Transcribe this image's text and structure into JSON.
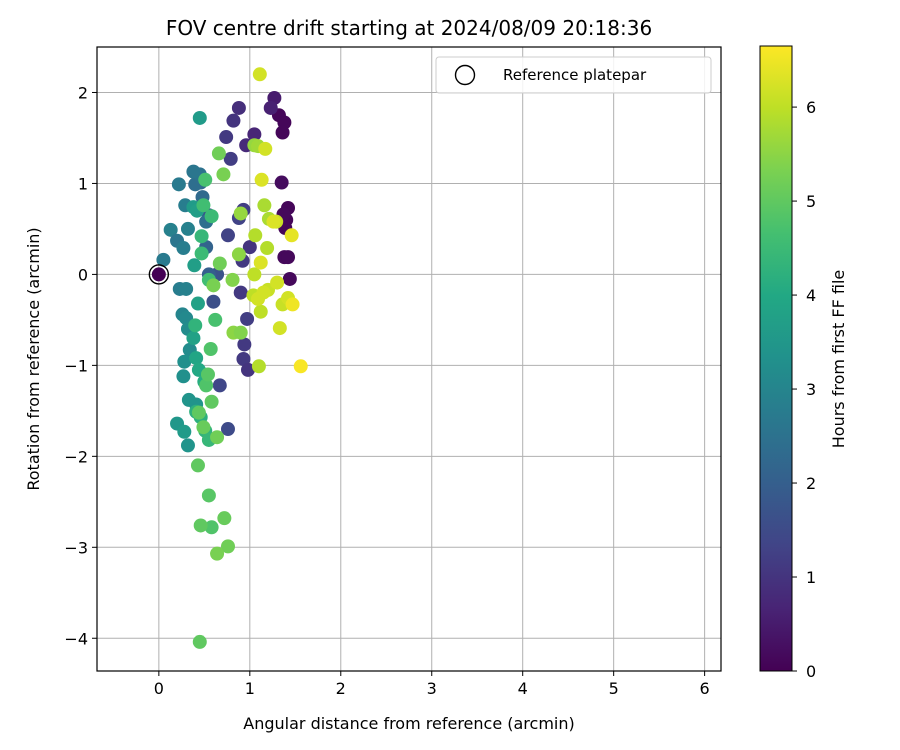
{
  "chart_data": {
    "type": "scatter",
    "title": "FOV centre drift starting at 2024/08/09 20:18:36",
    "xlabel": "Angular distance from reference (arcmin)",
    "ylabel": "Rotation from reference (arcmin)",
    "xlim": [
      -0.68,
      6.18
    ],
    "ylim": [
      -4.36,
      2.5
    ],
    "xticks": [
      0,
      1,
      2,
      3,
      4,
      5,
      6
    ],
    "yticks": [
      -4,
      -3,
      -2,
      -1,
      0,
      1,
      2
    ],
    "xtick_labels": [
      "0",
      "1",
      "2",
      "3",
      "4",
      "5",
      "6"
    ],
    "ytick_labels": [
      "−4",
      "−3",
      "−2",
      "−1",
      "0",
      "1",
      "2"
    ],
    "grid": true,
    "legend": {
      "placement": "top-right",
      "entries": [
        "Reference platepar"
      ]
    },
    "reference_point": {
      "name": "Reference platepar",
      "x": 0,
      "y": 0
    },
    "colorbar": {
      "label": "Hours from first FF file",
      "colormap": "viridis",
      "range": [
        0,
        6.65
      ],
      "ticks": [
        0,
        1,
        2,
        3,
        4,
        5,
        6
      ],
      "tick_labels": [
        "0",
        "1",
        "2",
        "3",
        "4",
        "5",
        "6"
      ]
    },
    "points": [
      [
        0.0,
        0.0,
        0.0
      ],
      [
        1.32,
        1.75,
        0.1
      ],
      [
        1.38,
        1.67,
        0.1
      ],
      [
        1.36,
        1.56,
        0.1
      ],
      [
        1.42,
        0.73,
        0.1
      ],
      [
        1.4,
        0.6,
        0.1
      ],
      [
        1.39,
        0.51,
        0.1
      ],
      [
        1.37,
        0.66,
        0.15
      ],
      [
        1.38,
        0.19,
        0.15
      ],
      [
        1.42,
        0.19,
        0.15
      ],
      [
        1.44,
        -0.05,
        0.15
      ],
      [
        1.35,
        1.01,
        0.2
      ],
      [
        1.27,
        1.94,
        0.5
      ],
      [
        1.23,
        1.83,
        0.6
      ],
      [
        1.05,
        1.54,
        0.7
      ],
      [
        0.96,
        1.42,
        0.8
      ],
      [
        0.88,
        1.83,
        0.9
      ],
      [
        0.82,
        1.69,
        1.0
      ],
      [
        0.74,
        1.51,
        1.1
      ],
      [
        0.79,
        1.27,
        1.2
      ],
      [
        0.93,
        0.71,
        1.2
      ],
      [
        0.88,
        0.62,
        1.3
      ],
      [
        0.76,
        0.43,
        1.3
      ],
      [
        0.92,
        0.15,
        1.1
      ],
      [
        1.0,
        0.3,
        1.0
      ],
      [
        0.9,
        -0.2,
        1.1
      ],
      [
        0.97,
        -0.49,
        1.2
      ],
      [
        0.94,
        -0.77,
        1.1
      ],
      [
        0.93,
        -0.93,
        1.1
      ],
      [
        0.98,
        -1.05,
        1.0
      ],
      [
        0.67,
        -1.22,
        1.4
      ],
      [
        0.76,
        -1.7,
        1.5
      ],
      [
        0.6,
        -0.3,
        1.6
      ],
      [
        0.64,
        0.0,
        1.7
      ],
      [
        0.55,
        0.65,
        1.7
      ],
      [
        0.55,
        0.0,
        2.0
      ],
      [
        0.52,
        0.3,
        2.1
      ],
      [
        0.52,
        0.58,
        2.4
      ],
      [
        0.48,
        0.85,
        2.3
      ],
      [
        0.46,
        1.01,
        2.2
      ],
      [
        0.4,
        0.99,
        2.4
      ],
      [
        0.45,
        1.1,
        2.5
      ],
      [
        0.38,
        1.13,
        2.6
      ],
      [
        0.22,
        0.99,
        2.7
      ],
      [
        0.29,
        0.76,
        2.8
      ],
      [
        0.32,
        0.5,
        2.9
      ],
      [
        0.13,
        0.49,
        2.9
      ],
      [
        0.2,
        0.37,
        2.6
      ],
      [
        0.27,
        0.29,
        2.8
      ],
      [
        0.05,
        0.16,
        2.7
      ],
      [
        0.23,
        -0.16,
        2.8
      ],
      [
        0.3,
        -0.16,
        2.9
      ],
      [
        0.26,
        -0.44,
        3.0
      ],
      [
        0.3,
        -0.48,
        3.1
      ],
      [
        0.32,
        -0.6,
        3.2
      ],
      [
        0.34,
        -0.83,
        3.2
      ],
      [
        0.28,
        -0.96,
        3.3
      ],
      [
        0.27,
        -1.12,
        3.3
      ],
      [
        0.33,
        -1.38,
        3.4
      ],
      [
        0.41,
        -1.43,
        3.4
      ],
      [
        0.2,
        -1.64,
        3.5
      ],
      [
        0.28,
        -1.73,
        3.6
      ],
      [
        0.32,
        -1.88,
        3.4
      ],
      [
        0.38,
        0.74,
        3.6
      ],
      [
        0.42,
        0.7,
        3.7
      ],
      [
        0.45,
        1.72,
        3.6
      ],
      [
        0.39,
        0.1,
        3.7
      ],
      [
        0.43,
        -0.32,
        3.8
      ],
      [
        0.38,
        -0.7,
        3.8
      ],
      [
        0.41,
        -0.92,
        3.9
      ],
      [
        0.44,
        -1.05,
        4.0
      ],
      [
        0.5,
        -1.18,
        4.1
      ],
      [
        0.41,
        -1.51,
        4.2
      ],
      [
        0.51,
        -1.72,
        4.3
      ],
      [
        0.46,
        -1.57,
        4.2
      ],
      [
        0.55,
        -1.82,
        4.4
      ],
      [
        0.4,
        -0.56,
        4.3
      ],
      [
        0.47,
        0.42,
        4.4
      ],
      [
        0.58,
        0.64,
        4.5
      ],
      [
        0.49,
        0.76,
        4.6
      ],
      [
        0.51,
        1.04,
        4.7
      ],
      [
        0.47,
        0.23,
        4.5
      ],
      [
        0.55,
        -0.06,
        4.6
      ],
      [
        0.62,
        -0.5,
        4.7
      ],
      [
        0.57,
        -0.82,
        4.8
      ],
      [
        0.52,
        -1.22,
        4.8
      ],
      [
        0.54,
        -1.1,
        4.9
      ],
      [
        0.58,
        -1.4,
        5.0
      ],
      [
        0.44,
        -1.52,
        5.0
      ],
      [
        0.49,
        -1.68,
        5.1
      ],
      [
        0.64,
        -1.79,
        5.2
      ],
      [
        0.43,
        -2.1,
        5.0
      ],
      [
        0.55,
        -2.43,
        4.9
      ],
      [
        0.58,
        -2.78,
        4.8
      ],
      [
        0.46,
        -2.76,
        5.0
      ],
      [
        0.72,
        -2.68,
        5.1
      ],
      [
        0.76,
        -2.99,
        5.2
      ],
      [
        0.64,
        -3.07,
        5.3
      ],
      [
        0.45,
        -4.04,
        5.0
      ],
      [
        0.66,
        1.33,
        5.2
      ],
      [
        0.71,
        1.1,
        5.3
      ],
      [
        0.6,
        -0.12,
        5.3
      ],
      [
        0.67,
        0.12,
        5.2
      ],
      [
        0.81,
        -0.06,
        5.4
      ],
      [
        0.82,
        -0.64,
        5.5
      ],
      [
        0.9,
        -0.64,
        5.4
      ],
      [
        0.88,
        0.22,
        5.5
      ],
      [
        0.9,
        0.67,
        5.6
      ],
      [
        1.05,
        1.42,
        5.6
      ],
      [
        1.09,
        1.41,
        5.7
      ],
      [
        1.16,
        0.76,
        5.8
      ],
      [
        1.21,
        0.61,
        5.8
      ],
      [
        1.19,
        0.29,
        5.9
      ],
      [
        1.06,
        0.43,
        5.9
      ],
      [
        1.05,
        0.0,
        6.0
      ],
      [
        1.04,
        -0.23,
        6.0
      ],
      [
        1.1,
        -1.01,
        5.9
      ],
      [
        1.12,
        -0.41,
        6.0
      ],
      [
        1.2,
        -0.17,
        6.1
      ],
      [
        1.15,
        -0.2,
        6.2
      ],
      [
        1.09,
        -0.27,
        6.2
      ],
      [
        1.29,
        0.58,
        6.1
      ],
      [
        1.3,
        -0.09,
        6.2
      ],
      [
        1.36,
        -0.33,
        6.1
      ],
      [
        1.42,
        -0.26,
        6.2
      ],
      [
        1.33,
        -0.59,
        6.2
      ],
      [
        1.17,
        1.38,
        6.2
      ],
      [
        1.13,
        1.04,
        6.3
      ],
      [
        1.11,
        2.2,
        6.2
      ],
      [
        1.12,
        0.13,
        6.3
      ],
      [
        1.26,
        0.58,
        6.3
      ],
      [
        1.46,
        0.43,
        6.4
      ],
      [
        1.47,
        -0.33,
        6.5
      ],
      [
        1.56,
        -1.01,
        6.6
      ]
    ]
  }
}
